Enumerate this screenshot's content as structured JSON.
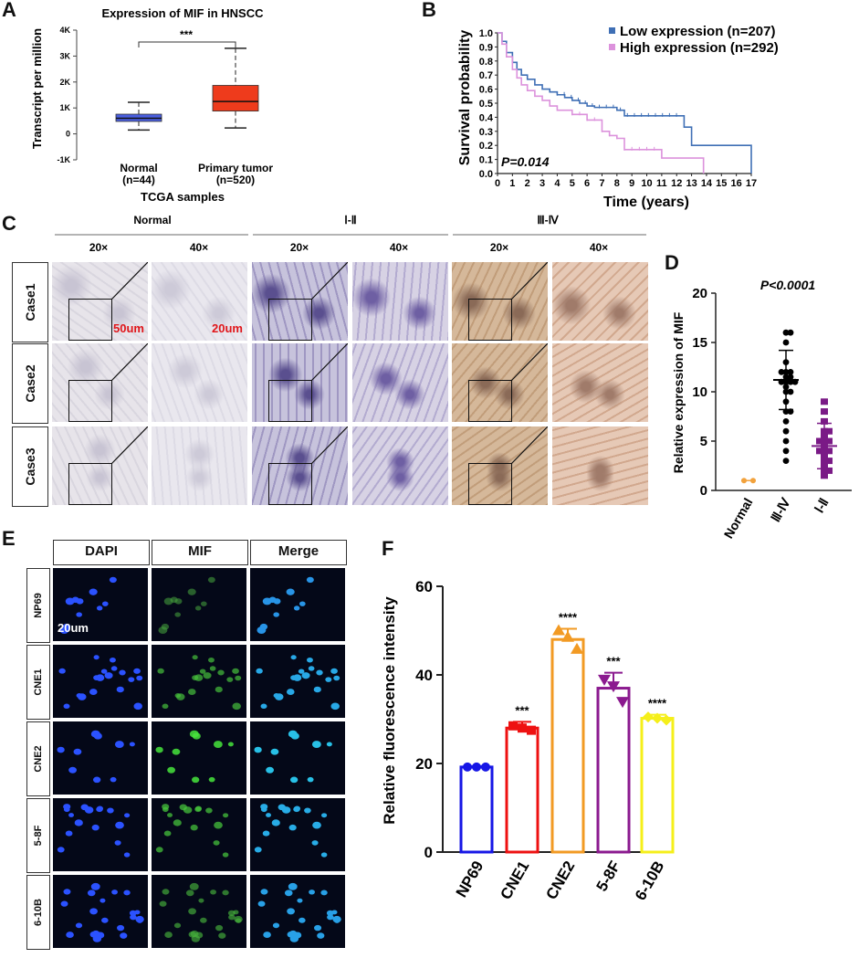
{
  "panels": {
    "A": "A",
    "B": "B",
    "C": "C",
    "D": "D",
    "E": "E",
    "F": "F"
  },
  "colors": {
    "normal_box": "#4a5fe0",
    "tumor_box": "#ee3b1c",
    "low_expr": "#3f6fb5",
    "high_expr": "#dc92dc",
    "d_normal": "#f2a23c",
    "d_late": "#000000",
    "d_early": "#7a1a86",
    "np69": "#1616e6",
    "cne1": "#ee1111",
    "cne2": "#f29a23",
    "f58": "#8b1a8f",
    "b610": "#f5ef1a"
  },
  "chart_data": [
    {
      "id": "A",
      "type": "box",
      "title": "Expression of MIF in HNSCC",
      "ylabel": "Transcript per million",
      "xlabel": "TCGA samples",
      "ylim": [
        -1000,
        4000
      ],
      "yticks": [
        "-1K",
        "0",
        "1K",
        "2K",
        "3K",
        "4K"
      ],
      "categories": [
        "Normal\n(n=44)",
        "Primary tumor\n(n=520)"
      ],
      "category_names": [
        "Normal",
        "Primary tumor"
      ],
      "category_ns": [
        "(n=44)",
        "(n=520)"
      ],
      "boxes": [
        {
          "min": 150,
          "q1": 480,
          "median": 600,
          "q3": 760,
          "max": 1220
        },
        {
          "min": 230,
          "q1": 880,
          "median": 1250,
          "q3": 1870,
          "max": 3300
        }
      ],
      "significance": "***"
    },
    {
      "id": "B",
      "type": "line",
      "subtype": "kaplan-meier",
      "ylabel": "Survival probability",
      "xlabel": "Time (years)",
      "xlim": [
        0,
        17
      ],
      "ylim": [
        0,
        1
      ],
      "xticks": [
        "0",
        "1",
        "2",
        "3",
        "4",
        "5",
        "6",
        "7",
        "8",
        "9",
        "10",
        "11",
        "12",
        "13",
        "14",
        "15",
        "16",
        "17"
      ],
      "yticks": [
        "0.0",
        "0.1",
        "0.2",
        "0.3",
        "0.4",
        "0.5",
        "0.6",
        "0.7",
        "0.8",
        "0.9",
        "1.0"
      ],
      "pvalue": "P=0.014",
      "series": [
        {
          "name": "Low expression (n=207)",
          "x": [
            0,
            0.3,
            0.6,
            1,
            1.3,
            1.6,
            2,
            2.5,
            3,
            3.5,
            4,
            4.5,
            5,
            5.5,
            6,
            6.5,
            7,
            8,
            8.5,
            12,
            12.5,
            13,
            16.9,
            17
          ],
          "y": [
            1,
            0.94,
            0.86,
            0.79,
            0.74,
            0.7,
            0.67,
            0.63,
            0.6,
            0.58,
            0.56,
            0.54,
            0.52,
            0.5,
            0.48,
            0.47,
            0.47,
            0.45,
            0.41,
            0.41,
            0.33,
            0.2,
            0.2,
            0
          ]
        },
        {
          "name": "High expression (n=292)",
          "x": [
            0,
            0.3,
            0.6,
            1,
            1.3,
            1.6,
            2,
            2.5,
            3,
            3.5,
            4,
            5,
            6,
            7,
            7.5,
            8,
            8.5,
            10,
            11,
            13,
            13.7,
            13.8
          ],
          "y": [
            1,
            0.92,
            0.83,
            0.74,
            0.68,
            0.63,
            0.59,
            0.55,
            0.52,
            0.48,
            0.45,
            0.42,
            0.38,
            0.3,
            0.27,
            0.25,
            0.17,
            0.17,
            0.11,
            0.11,
            0.11,
            0
          ]
        }
      ]
    },
    {
      "id": "D",
      "type": "scatter",
      "title": "P<0.0001",
      "ylabel": "Relative expression of MIF",
      "ylim": [
        0,
        20
      ],
      "yticks": [
        "0",
        "5",
        "10",
        "15",
        "20"
      ],
      "categories": [
        "Normal",
        "Ⅲ-Ⅳ",
        "Ⅰ-Ⅱ"
      ],
      "groups": [
        {
          "mean": 1,
          "sd": 0,
          "points": [
            1,
            1
          ]
        },
        {
          "mean": 11.2,
          "sd": 3,
          "points": [
            16,
            16,
            15,
            13,
            12,
            12,
            12,
            11.5,
            11.5,
            11,
            11,
            11,
            11,
            10.5,
            10,
            10,
            9,
            8,
            8,
            7,
            6,
            5,
            4,
            3
          ]
        },
        {
          "mean": 4.5,
          "sd": 2.3,
          "points": [
            9,
            8,
            7,
            6,
            6,
            5.5,
            5,
            5,
            5,
            4.5,
            4,
            4,
            4,
            3.5,
            3,
            3,
            2.5,
            2,
            2,
            1.5
          ]
        }
      ]
    },
    {
      "id": "F",
      "type": "bar",
      "ylabel": "Relative fluorescence intensity",
      "ylim": [
        0,
        60
      ],
      "yticks": [
        "0",
        "20",
        "40",
        "60"
      ],
      "categories": [
        "NP69",
        "CNE1",
        "CNE2",
        "5-8F",
        "6-10B"
      ],
      "values": [
        19.2,
        28,
        48,
        37,
        30.2
      ],
      "errors": [
        0.2,
        1.4,
        2.4,
        3.5,
        0.8
      ],
      "points": [
        [
          19.2,
          19.2,
          19.2
        ],
        [
          28.5,
          28,
          27.5
        ],
        [
          50,
          48.5,
          45.8
        ],
        [
          39,
          37.5,
          34
        ]
      ],
      "points5": [
        30.5,
        30.2,
        29.8
      ],
      "markers": [
        "circle",
        "square",
        "triangle-up",
        "triangle-down",
        "diamond"
      ],
      "significance": [
        "",
        "***",
        "****",
        "***",
        "****"
      ]
    }
  ],
  "panel_c": {
    "groups": [
      "Normal",
      "Ⅰ-Ⅱ",
      "Ⅲ-Ⅳ"
    ],
    "mags": [
      "20×",
      "40×",
      "20×",
      "40×",
      "20×",
      "40×"
    ],
    "rows": [
      "Case1",
      "Case2",
      "Case3"
    ],
    "scalebars": [
      "50um",
      "20um"
    ]
  },
  "panel_e": {
    "columns": [
      "DAPI",
      "MIF",
      "Merge"
    ],
    "rows": [
      "NP69",
      "CNE1",
      "CNE2",
      "5-8F",
      "6-10B"
    ],
    "scalebar": "20um"
  }
}
